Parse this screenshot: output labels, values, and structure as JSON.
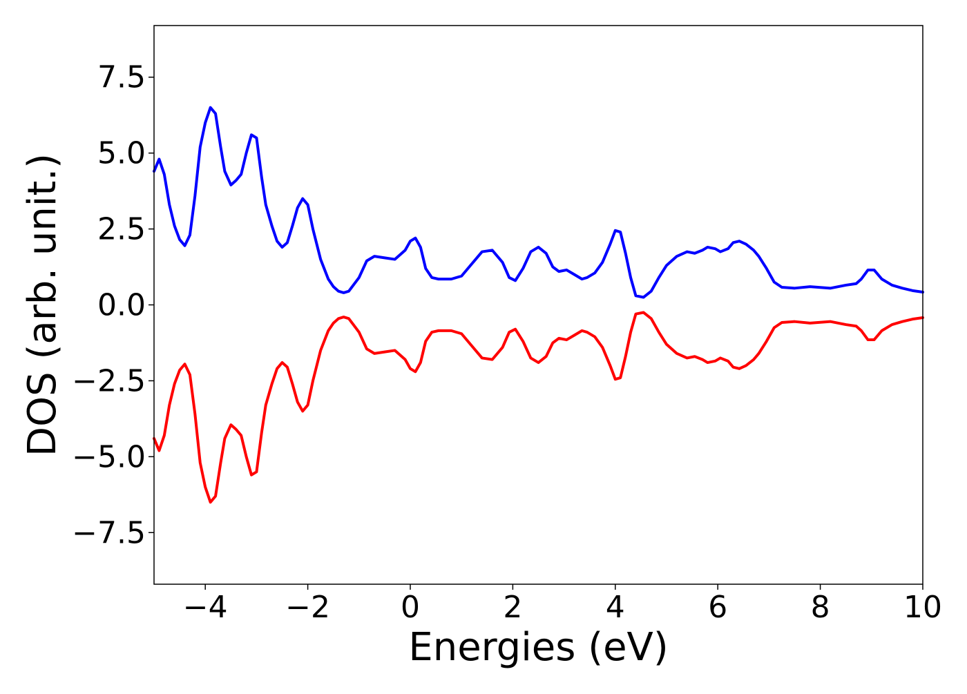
{
  "chart_data": {
    "type": "line",
    "title": "",
    "xlabel": "Energies (eV)",
    "ylabel": "DOS (arb. unit.)",
    "xlim": [
      -5,
      10
    ],
    "ylim": [
      -9.2,
      9.2
    ],
    "grid": false,
    "legend": "none",
    "x_ticks": [
      -4,
      -2,
      0,
      2,
      4,
      6,
      8,
      10
    ],
    "x_tick_labels": [
      "−4",
      "−2",
      "0",
      "2",
      "4",
      "6",
      "8",
      "10"
    ],
    "y_ticks": [
      7.5,
      5.0,
      2.5,
      0.0,
      -2.5,
      -5.0,
      -7.5
    ],
    "y_tick_labels": [
      "7.5",
      "5.0",
      "2.5",
      "0.0",
      "−2.5",
      "−5.0",
      "−7.5"
    ],
    "series": [
      {
        "color": "#0000ff",
        "x": [
          -5.0,
          -4.9,
          -4.8,
          -4.7,
          -4.6,
          -4.5,
          -4.4,
          -4.3,
          -4.2,
          -4.1,
          -4.0,
          -3.9,
          -3.8,
          -3.7,
          -3.62,
          -3.5,
          -3.4,
          -3.3,
          -3.2,
          -3.1,
          -3.0,
          -2.9,
          -2.82,
          -2.7,
          -2.6,
          -2.5,
          -2.4,
          -2.3,
          -2.2,
          -2.1,
          -2.0,
          -1.9,
          -1.75,
          -1.6,
          -1.5,
          -1.4,
          -1.3,
          -1.2,
          -1.0,
          -0.85,
          -0.7,
          -0.5,
          -0.3,
          -0.1,
          0.0,
          0.1,
          0.2,
          0.3,
          0.42,
          0.55,
          0.7,
          0.8,
          1.0,
          1.2,
          1.4,
          1.6,
          1.8,
          1.93,
          2.05,
          2.2,
          2.35,
          2.5,
          2.65,
          2.78,
          2.9,
          3.05,
          3.2,
          3.35,
          3.45,
          3.6,
          3.75,
          3.9,
          4.0,
          4.1,
          4.2,
          4.3,
          4.4,
          4.55,
          4.7,
          4.85,
          5.0,
          5.2,
          5.4,
          5.55,
          5.7,
          5.8,
          5.95,
          6.05,
          6.2,
          6.3,
          6.42,
          6.55,
          6.7,
          6.8,
          6.95,
          7.1,
          7.25,
          7.5,
          7.8,
          8.2,
          8.5,
          8.7,
          8.8,
          8.93,
          9.05,
          9.2,
          9.4,
          9.6,
          9.8,
          10.0
        ],
        "values": [
          4.4,
          4.8,
          4.3,
          3.3,
          2.6,
          2.15,
          1.95,
          2.3,
          3.6,
          5.2,
          6.0,
          6.5,
          6.3,
          5.2,
          4.4,
          3.95,
          4.1,
          4.3,
          5.0,
          5.6,
          5.5,
          4.2,
          3.3,
          2.6,
          2.1,
          1.9,
          2.05,
          2.6,
          3.2,
          3.5,
          3.3,
          2.5,
          1.5,
          0.85,
          0.6,
          0.45,
          0.4,
          0.45,
          0.9,
          1.45,
          1.6,
          1.55,
          1.5,
          1.8,
          2.1,
          2.2,
          1.9,
          1.2,
          0.9,
          0.85,
          0.85,
          0.85,
          0.95,
          1.35,
          1.75,
          1.8,
          1.4,
          0.9,
          0.8,
          1.2,
          1.75,
          1.9,
          1.7,
          1.25,
          1.1,
          1.15,
          1.0,
          0.85,
          0.9,
          1.05,
          1.4,
          2.0,
          2.45,
          2.4,
          1.7,
          0.9,
          0.3,
          0.25,
          0.45,
          0.9,
          1.3,
          1.6,
          1.75,
          1.7,
          1.8,
          1.9,
          1.85,
          1.75,
          1.85,
          2.05,
          2.1,
          2.0,
          1.8,
          1.6,
          1.2,
          0.75,
          0.58,
          0.55,
          0.6,
          0.55,
          0.65,
          0.7,
          0.85,
          1.15,
          1.15,
          0.85,
          0.65,
          0.55,
          0.47,
          0.42
        ]
      },
      {
        "color": "#ff0000",
        "x": [
          -5.0,
          -4.9,
          -4.8,
          -4.7,
          -4.6,
          -4.5,
          -4.4,
          -4.3,
          -4.2,
          -4.1,
          -4.0,
          -3.9,
          -3.8,
          -3.7,
          -3.62,
          -3.5,
          -3.4,
          -3.3,
          -3.2,
          -3.1,
          -3.0,
          -2.9,
          -2.82,
          -2.7,
          -2.6,
          -2.5,
          -2.4,
          -2.3,
          -2.2,
          -2.1,
          -2.0,
          -1.9,
          -1.75,
          -1.6,
          -1.5,
          -1.4,
          -1.3,
          -1.2,
          -1.0,
          -0.85,
          -0.7,
          -0.5,
          -0.3,
          -0.1,
          0.0,
          0.1,
          0.2,
          0.3,
          0.42,
          0.55,
          0.7,
          0.8,
          1.0,
          1.2,
          1.4,
          1.6,
          1.8,
          1.93,
          2.05,
          2.2,
          2.35,
          2.5,
          2.65,
          2.78,
          2.9,
          3.05,
          3.2,
          3.35,
          3.45,
          3.6,
          3.75,
          3.9,
          4.0,
          4.1,
          4.2,
          4.3,
          4.4,
          4.55,
          4.7,
          4.85,
          5.0,
          5.2,
          5.4,
          5.55,
          5.7,
          5.8,
          5.95,
          6.05,
          6.2,
          6.3,
          6.42,
          6.55,
          6.7,
          6.8,
          6.95,
          7.1,
          7.25,
          7.5,
          7.8,
          8.2,
          8.5,
          8.7,
          8.8,
          8.93,
          9.05,
          9.2,
          9.4,
          9.6,
          9.8,
          10.0
        ],
        "values": [
          -4.4,
          -4.8,
          -4.3,
          -3.3,
          -2.6,
          -2.15,
          -1.95,
          -2.3,
          -3.6,
          -5.2,
          -6.0,
          -6.5,
          -6.3,
          -5.2,
          -4.4,
          -3.95,
          -4.1,
          -4.3,
          -5.0,
          -5.6,
          -5.5,
          -4.2,
          -3.3,
          -2.6,
          -2.1,
          -1.9,
          -2.05,
          -2.6,
          -3.2,
          -3.5,
          -3.3,
          -2.5,
          -1.5,
          -0.85,
          -0.6,
          -0.45,
          -0.4,
          -0.45,
          -0.9,
          -1.45,
          -1.6,
          -1.55,
          -1.5,
          -1.8,
          -2.1,
          -2.2,
          -1.9,
          -1.2,
          -0.9,
          -0.85,
          -0.85,
          -0.85,
          -0.95,
          -1.35,
          -1.75,
          -1.8,
          -1.4,
          -0.9,
          -0.8,
          -1.2,
          -1.75,
          -1.9,
          -1.7,
          -1.25,
          -1.1,
          -1.15,
          -1.0,
          -0.85,
          -0.9,
          -1.05,
          -1.4,
          -2.0,
          -2.45,
          -2.4,
          -1.7,
          -0.9,
          -0.3,
          -0.25,
          -0.45,
          -0.9,
          -1.3,
          -1.6,
          -1.75,
          -1.7,
          -1.8,
          -1.9,
          -1.85,
          -1.75,
          -1.85,
          -2.05,
          -2.1,
          -2.0,
          -1.8,
          -1.6,
          -1.2,
          -0.75,
          -0.58,
          -0.55,
          -0.6,
          -0.55,
          -0.65,
          -0.7,
          -0.85,
          -1.15,
          -1.15,
          -0.85,
          -0.65,
          -0.55,
          -0.47,
          -0.42
        ]
      }
    ]
  }
}
